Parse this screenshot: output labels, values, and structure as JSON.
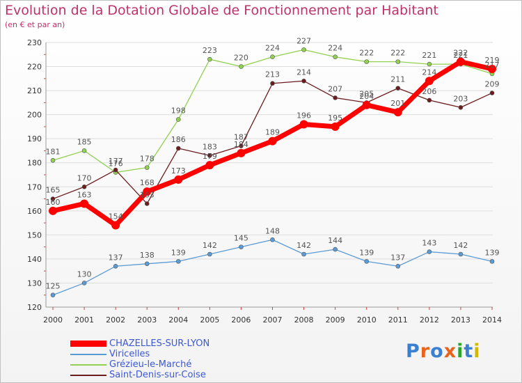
{
  "title": "Evolution de la Dotation Globale de Fonctionnement par Habitant",
  "subtitle": "(en € et par an)",
  "logo_text": "Proxiti",
  "chart_data": {
    "type": "line",
    "title": "Evolution de la Dotation Globale de Fonctionnement par Habitant",
    "subtitle": "(en € et par an)",
    "xlabel": "",
    "ylabel": "",
    "x": [
      "2000",
      "2001",
      "2002",
      "2003",
      "2004",
      "2005",
      "2006",
      "2007",
      "2008",
      "2009",
      "2010",
      "2011",
      "2012",
      "2013",
      "2014"
    ],
    "ylim": [
      120,
      230
    ],
    "yticks": [
      120,
      130,
      140,
      150,
      160,
      170,
      180,
      190,
      200,
      210,
      220,
      230
    ],
    "grid": "horizontal",
    "legend_position": "bottom-left",
    "series": [
      {
        "name": "Viricelles",
        "color": "#5b9bd5",
        "values": [
          125,
          130,
          137,
          138,
          139,
          142,
          145,
          148,
          142,
          144,
          139,
          137,
          143,
          142,
          139
        ]
      },
      {
        "name": "Grézieu-le-Marché",
        "color": "#92d050",
        "values": [
          181,
          185,
          176,
          178,
          198,
          223,
          220,
          224,
          227,
          224,
          222,
          222,
          221,
          221,
          217
        ]
      },
      {
        "name": "Saint-Denis-sur-Coise",
        "color": "#6b1c1c",
        "values": [
          165,
          170,
          177,
          163,
          186,
          183,
          187,
          213,
          214,
          207,
          205,
          211,
          206,
          203,
          209
        ]
      },
      {
        "name": "CHAZELLES-SUR-LYON",
        "color": "#ff0000",
        "values": [
          160,
          163,
          154,
          168,
          173,
          179,
          184,
          189,
          196,
          195,
          204,
          201,
          214,
          222,
          219
        ]
      }
    ]
  }
}
